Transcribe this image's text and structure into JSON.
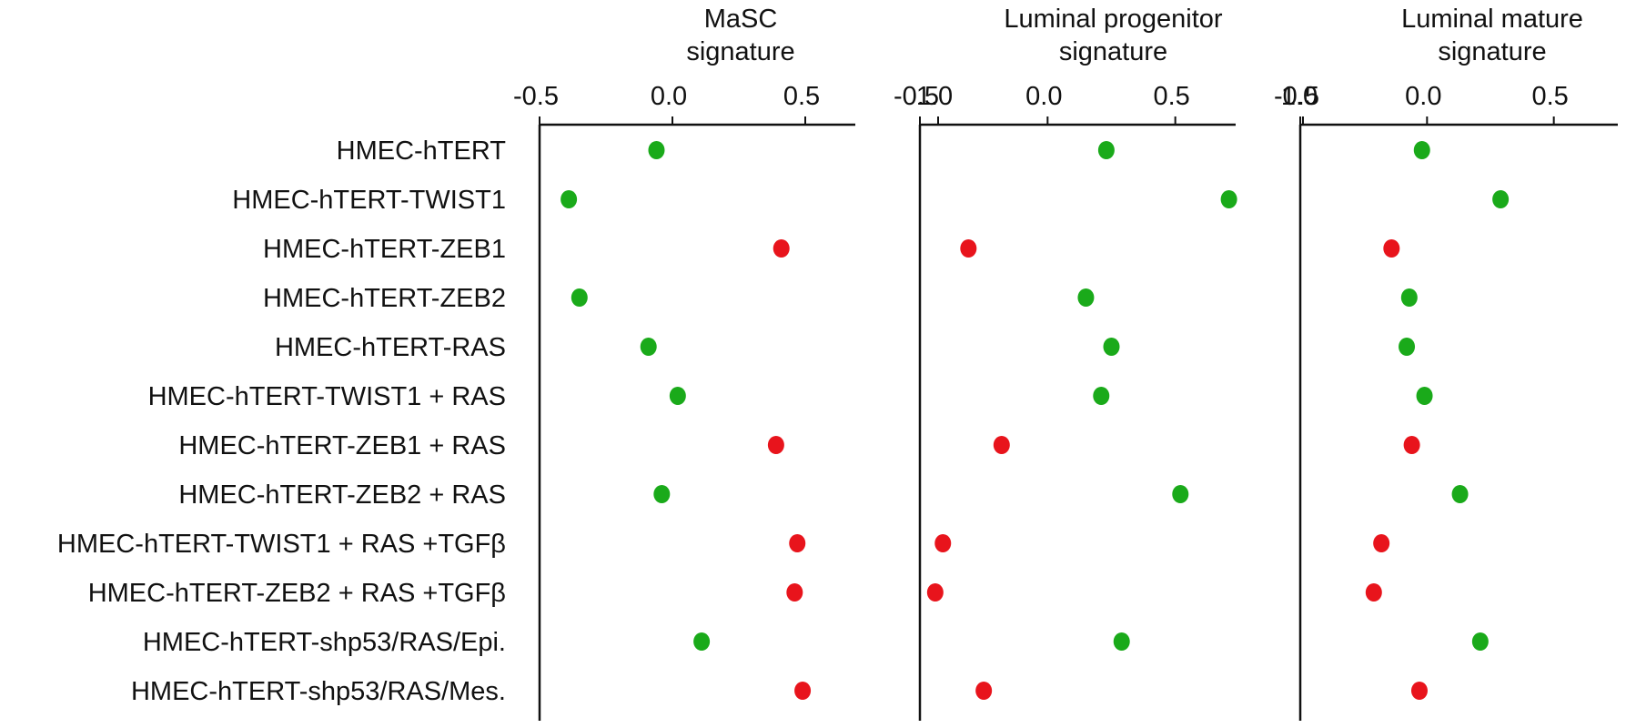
{
  "chart_data": {
    "type": "scatter",
    "categories": [
      "HMEC-hTERT",
      "HMEC-hTERT-TWIST1",
      "HMEC-hTERT-ZEB1",
      "HMEC-hTERT-ZEB2",
      "HMEC-hTERT-RAS",
      "HMEC-hTERT-TWIST1 + RAS",
      "HMEC-hTERT-ZEB1 + RAS",
      "HMEC-hTERT-ZEB2 + RAS",
      "HMEC-hTERT-TWIST1 + RAS +TGFβ",
      "HMEC-hTERT-ZEB2 + RAS +TGFβ",
      "HMEC-hTERT-shp53/RAS/Epi.",
      "HMEC-hTERT-shp53/RAS/Mes."
    ],
    "colors": {
      "green": "#1aaa1a",
      "red": "#e8141c"
    },
    "point_colors": [
      "green",
      "green",
      "red",
      "green",
      "green",
      "green",
      "red",
      "green",
      "red",
      "red",
      "green",
      "red"
    ],
    "xlim": [
      -0.5,
      1.0
    ],
    "ticks": [
      "-0.5",
      "0.0",
      "0.5",
      "1.0"
    ],
    "panels": [
      {
        "title": [
          "MaSC",
          "signature"
        ],
        "values": [
          -0.06,
          -0.39,
          0.41,
          -0.35,
          -0.09,
          0.02,
          0.39,
          -0.04,
          0.47,
          0.46,
          0.11,
          0.49
        ]
      },
      {
        "title": [
          "Luminal progenitor",
          "signature"
        ],
        "values": [
          0.23,
          0.71,
          -0.31,
          0.15,
          0.25,
          0.21,
          -0.18,
          0.52,
          -0.41,
          -0.44,
          0.29,
          -0.25
        ]
      },
      {
        "title": [
          "Luminal mature",
          "signature"
        ],
        "values": [
          -0.02,
          0.29,
          -0.14,
          -0.07,
          -0.08,
          -0.01,
          -0.06,
          0.13,
          -0.18,
          -0.21,
          0.21,
          -0.03
        ]
      }
    ],
    "grid": false,
    "legend": "none"
  }
}
